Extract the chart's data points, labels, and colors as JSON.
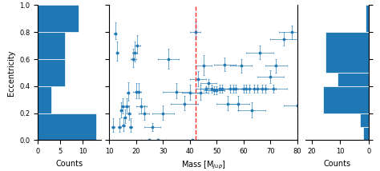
{
  "scatter_mass": [
    11.5,
    12.2,
    13.0,
    13.8,
    14.5,
    15.0,
    15.3,
    15.8,
    16.5,
    17.0,
    17.5,
    18.0,
    19.0,
    19.5,
    20.0,
    20.5,
    21.0,
    22.0,
    23.0,
    25.0,
    26.0,
    28.0,
    30.0,
    32.0,
    35.0,
    38.0,
    40.0,
    41.0,
    42.0,
    43.0,
    44.0,
    45.0,
    46.0,
    47.0,
    48.0,
    49.0,
    50.0,
    51.0,
    52.0,
    53.0,
    54.0,
    55.0,
    56.0,
    57.0,
    58.0,
    59.0,
    60.0,
    61.0,
    62.0,
    63.0,
    64.0,
    65.0,
    66.0,
    67.0,
    68.0,
    70.0,
    71.0,
    72.0,
    75.0,
    78.0,
    80.0
  ],
  "scatter_ecc": [
    0.1,
    0.79,
    0.65,
    0.1,
    0.22,
    0.25,
    0.11,
    0.17,
    0.25,
    0.35,
    0.2,
    0.1,
    0.6,
    0.65,
    0.36,
    0.7,
    0.36,
    0.25,
    0.2,
    0.0,
    0.1,
    0.0,
    0.2,
    0.6,
    0.36,
    0.27,
    0.35,
    0.0,
    0.8,
    0.45,
    0.35,
    0.55,
    0.38,
    0.42,
    0.38,
    0.37,
    0.37,
    0.38,
    0.38,
    0.56,
    0.27,
    0.38,
    0.38,
    0.38,
    0.27,
    0.55,
    0.38,
    0.38,
    0.38,
    0.22,
    0.38,
    0.38,
    0.65,
    0.38,
    0.38,
    0.47,
    0.38,
    0.55,
    0.75,
    0.8,
    0.26
  ],
  "xerr_lo": [
    0.5,
    0.5,
    0.5,
    0.5,
    0.5,
    0.5,
    0.5,
    0.5,
    0.5,
    0.5,
    0.5,
    0.5,
    1.0,
    1.0,
    1.0,
    1.0,
    1.0,
    2.0,
    2.0,
    3.0,
    3.0,
    3.0,
    4.0,
    4.0,
    5.0,
    5.0,
    3.0,
    2.0,
    2.0,
    3.0,
    3.0,
    3.0,
    4.0,
    3.0,
    4.0,
    4.0,
    3.0,
    3.0,
    3.0,
    4.0,
    4.0,
    4.0,
    4.0,
    4.0,
    4.0,
    4.0,
    5.0,
    4.0,
    4.0,
    5.0,
    5.0,
    4.0,
    5.0,
    5.0,
    4.0,
    5.0,
    5.0,
    4.0,
    5.0,
    5.0,
    5.0
  ],
  "xerr_hi": [
    0.5,
    0.5,
    0.5,
    0.5,
    0.5,
    0.5,
    0.5,
    0.5,
    0.5,
    0.5,
    0.5,
    0.5,
    1.0,
    1.0,
    1.0,
    1.0,
    1.0,
    2.0,
    2.0,
    3.0,
    3.0,
    3.0,
    4.0,
    4.0,
    5.0,
    5.0,
    3.0,
    2.0,
    2.0,
    3.0,
    3.0,
    3.0,
    4.0,
    3.0,
    4.0,
    4.0,
    3.0,
    3.0,
    3.0,
    4.0,
    4.0,
    4.0,
    4.0,
    4.0,
    4.0,
    4.0,
    5.0,
    4.0,
    4.0,
    5.0,
    5.0,
    4.0,
    5.0,
    5.0,
    4.0,
    5.0,
    5.0,
    4.0,
    5.0,
    5.0,
    5.0
  ],
  "yerr_lo": [
    0.04,
    0.04,
    0.06,
    0.04,
    0.05,
    0.05,
    0.04,
    0.04,
    0.05,
    0.06,
    0.05,
    0.04,
    0.06,
    0.07,
    0.05,
    0.06,
    0.05,
    0.05,
    0.05,
    0.0,
    0.03,
    0.0,
    0.05,
    0.07,
    0.05,
    0.05,
    0.05,
    0.0,
    0.05,
    0.05,
    0.05,
    0.07,
    0.02,
    0.03,
    0.03,
    0.03,
    0.03,
    0.03,
    0.03,
    0.05,
    0.05,
    0.03,
    0.03,
    0.03,
    0.05,
    0.05,
    0.03,
    0.03,
    0.03,
    0.05,
    0.03,
    0.03,
    0.05,
    0.03,
    0.03,
    0.05,
    0.03,
    0.05,
    0.05,
    0.05,
    0.05
  ],
  "yerr_hi": [
    0.06,
    0.08,
    0.08,
    0.06,
    0.06,
    0.06,
    0.06,
    0.06,
    0.06,
    0.08,
    0.06,
    0.06,
    0.08,
    0.08,
    0.06,
    0.08,
    0.06,
    0.06,
    0.06,
    0.0,
    0.03,
    0.0,
    0.06,
    0.08,
    0.06,
    0.06,
    0.06,
    0.0,
    0.08,
    0.06,
    0.06,
    0.08,
    0.02,
    0.03,
    0.03,
    0.03,
    0.03,
    0.03,
    0.03,
    0.05,
    0.06,
    0.03,
    0.03,
    0.03,
    0.06,
    0.05,
    0.03,
    0.03,
    0.03,
    0.06,
    0.03,
    0.03,
    0.05,
    0.03,
    0.03,
    0.05,
    0.03,
    0.05,
    0.05,
    0.05,
    0.05
  ],
  "ecc_bins": [
    0.0,
    0.2,
    0.4,
    0.6,
    0.8,
    1.0
  ],
  "left_hist_counts": [
    13,
    3,
    6,
    6,
    9
  ],
  "right_hist_counts": [
    2,
    3,
    16,
    11,
    15,
    1
  ],
  "right_hist_bins": [
    0.0,
    0.1,
    0.2,
    0.4,
    0.5,
    0.8,
    1.0
  ],
  "vline_x": 42,
  "xlim_scatter": [
    10,
    80
  ],
  "ylim_scatter": [
    0.0,
    1.0
  ],
  "scatter_color": "#1f77b4",
  "hist_color": "#1f77b4",
  "vline_color": "red",
  "xlabel_scatter": "Mass [M$_{jup}$]",
  "ylabel_left": "Eccentricity",
  "xlabel_left_hist": "Counts",
  "xlabel_right_hist": "Counts",
  "left_xlim": [
    0,
    14
  ],
  "right_xlim": [
    22,
    0
  ],
  "left_xticks": [
    0,
    5,
    10
  ],
  "right_xticks": [
    20,
    10,
    0
  ],
  "scatter_xticks": [
    10,
    20,
    30,
    40,
    50,
    60,
    70,
    80
  ],
  "yticks": [
    0.0,
    0.2,
    0.4,
    0.6,
    0.8,
    1.0
  ]
}
